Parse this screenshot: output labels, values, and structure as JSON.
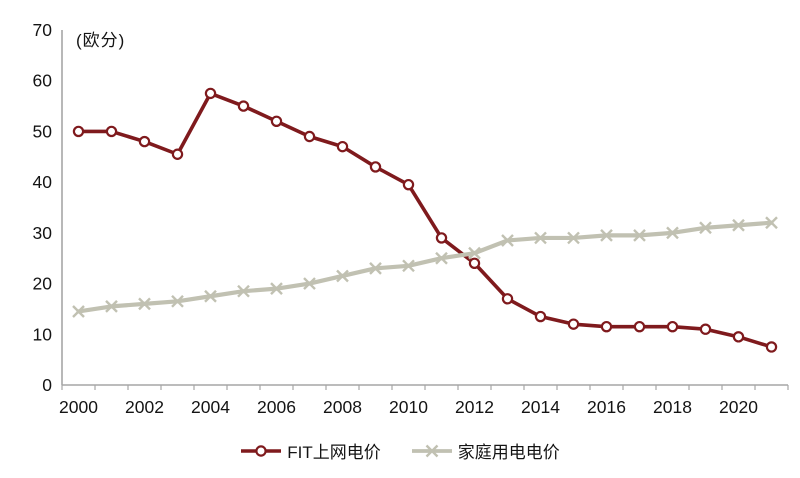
{
  "unit_label": "(欧分)",
  "colors": {
    "fit_line": "#7F1A1D",
    "household_line": "#C1C1B2",
    "axis": "#A6A6A6",
    "text": "#141414",
    "marker_fill": "#FFFFFF",
    "background": "#FFFFFF"
  },
  "chart_data": {
    "type": "line",
    "title": "",
    "ylabel": "(欧分)",
    "xlabel": "",
    "ylim": [
      0,
      70
    ],
    "yticks": [
      0,
      10,
      20,
      30,
      40,
      50,
      60,
      70
    ],
    "grid": false,
    "legend_position": "bottom",
    "x": [
      2000,
      2001,
      2002,
      2003,
      2004,
      2005,
      2006,
      2007,
      2008,
      2009,
      2010,
      2011,
      2012,
      2013,
      2014,
      2015,
      2016,
      2017,
      2018,
      2019,
      2020,
      2021
    ],
    "xtick_labels": [
      "2000",
      "2002",
      "2004",
      "2006",
      "2008",
      "2010",
      "2012",
      "2014",
      "2016",
      "2018",
      "2020"
    ],
    "series": [
      {
        "name": "FIT上网电价",
        "marker": "circle",
        "color": "#7F1A1D",
        "values": [
          50,
          50,
          48,
          45.5,
          57.5,
          55,
          52,
          49,
          47,
          43,
          39.5,
          29,
          24,
          17,
          13.5,
          12,
          11.5,
          11.5,
          11.5,
          11,
          9.5,
          7.5
        ]
      },
      {
        "name": "家庭用电电价",
        "marker": "x",
        "color": "#C1C1B2",
        "values": [
          14.5,
          15.5,
          16,
          16.5,
          17.5,
          18.5,
          19,
          20,
          21.5,
          23,
          23.5,
          25,
          26,
          28.5,
          29,
          29,
          29.5,
          29.5,
          30,
          31,
          31.5,
          32
        ]
      }
    ]
  }
}
